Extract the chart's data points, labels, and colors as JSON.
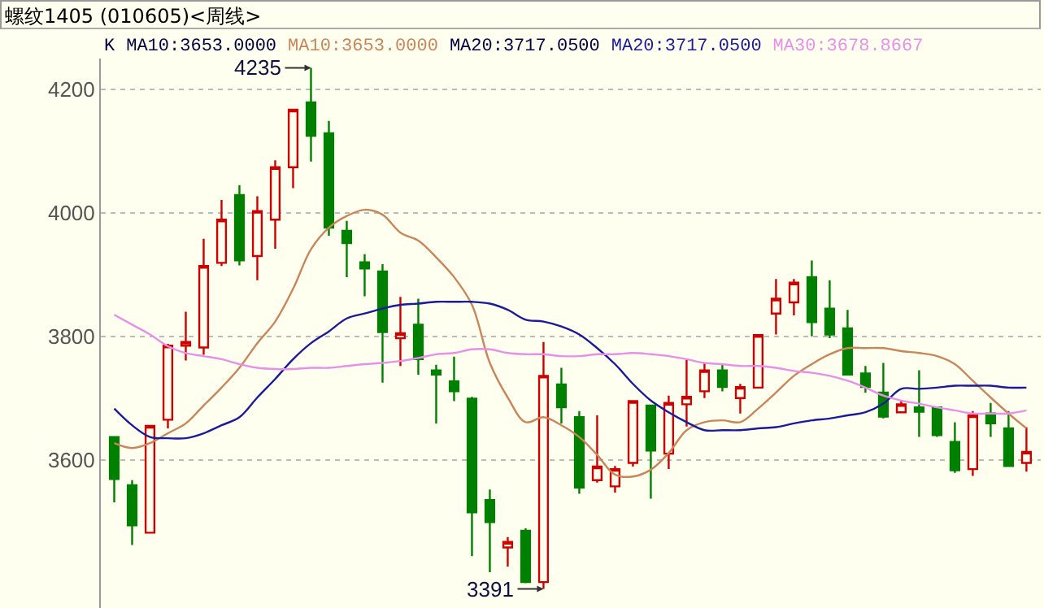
{
  "chart_data": {
    "type": "candlestick",
    "title": "螺纹1405 (010605)<周线>",
    "categories": [
      null,
      null,
      null,
      null,
      null,
      null,
      null,
      null,
      null,
      null,
      null,
      null,
      null,
      null,
      null,
      null,
      null,
      null,
      null,
      null,
      null,
      null,
      null,
      null,
      null,
      null,
      null,
      null,
      null,
      null,
      null,
      null,
      null,
      null,
      null,
      null,
      null,
      null,
      null,
      null,
      null,
      null,
      null,
      null,
      null,
      null,
      null,
      null,
      null,
      null,
      null,
      null
    ],
    "ohlc": [
      [
        3637,
        3638,
        3531,
        3569
      ],
      [
        3559,
        3567,
        3462,
        3494
      ],
      [
        3482,
        3655,
        3482,
        3655
      ],
      [
        3665,
        3788,
        3651,
        3785
      ],
      [
        3785,
        3840,
        3761,
        3791
      ],
      [
        3782,
        3958,
        3770,
        3914
      ],
      [
        3919,
        4021,
        3914,
        3989
      ],
      [
        4029,
        4045,
        3915,
        3923
      ],
      [
        3930,
        4027,
        3891,
        4003
      ],
      [
        3989,
        4085,
        3942,
        4074
      ],
      [
        4074,
        4167,
        4040,
        4167
      ],
      [
        4179,
        4235,
        4083,
        4125
      ],
      [
        4129,
        4149,
        3963,
        3976
      ],
      [
        3971,
        3987,
        3896,
        3951
      ],
      [
        3920,
        3933,
        3865,
        3910
      ],
      [
        3905,
        3917,
        3725,
        3807
      ],
      [
        3797,
        3864,
        3752,
        3805
      ],
      [
        3819,
        3861,
        3738,
        3763
      ],
      [
        3745,
        3754,
        3659,
        3738
      ],
      [
        3727,
        3767,
        3695,
        3711
      ],
      [
        3699,
        3702,
        3444,
        3515
      ],
      [
        3535,
        3552,
        3418,
        3499
      ],
      [
        3458,
        3475,
        3427,
        3467
      ],
      [
        3485,
        3489,
        3400,
        3402
      ],
      [
        3402,
        3791,
        3391,
        3736
      ],
      [
        3722,
        3749,
        3659,
        3685
      ],
      [
        3669,
        3679,
        3545,
        3555
      ],
      [
        3567,
        3672,
        3563,
        3589
      ],
      [
        3557,
        3590,
        3547,
        3585
      ],
      [
        3595,
        3695,
        3589,
        3695
      ],
      [
        3688,
        3688,
        3537,
        3615
      ],
      [
        3610,
        3704,
        3585,
        3692
      ],
      [
        3690,
        3763,
        3654,
        3702
      ],
      [
        3711,
        3757,
        3700,
        3745
      ],
      [
        3745,
        3754,
        3711,
        3718
      ],
      [
        3700,
        3723,
        3675,
        3718
      ],
      [
        3717,
        3802,
        3717,
        3802
      ],
      [
        3837,
        3893,
        3803,
        3861
      ],
      [
        3855,
        3893,
        3834,
        3887
      ],
      [
        3896,
        3923,
        3800,
        3823
      ],
      [
        3845,
        3891,
        3797,
        3803
      ],
      [
        3813,
        3843,
        3738,
        3738
      ],
      [
        3740,
        3752,
        3709,
        3718
      ],
      [
        3709,
        3757,
        3667,
        3670
      ],
      [
        3677,
        3696,
        3677,
        3690
      ],
      [
        3685,
        3745,
        3637,
        3678
      ],
      [
        3685,
        3685,
        3637,
        3640
      ],
      [
        3629,
        3661,
        3579,
        3583
      ],
      [
        3585,
        3679,
        3574,
        3672
      ],
      [
        3675,
        3692,
        3637,
        3659
      ],
      [
        3651,
        3679,
        3590,
        3590
      ],
      [
        3595,
        3653,
        3581,
        3613
      ]
    ],
    "colors": [
      "#008000",
      "#008000",
      "#d00000",
      "#d00000",
      "#d00000",
      "#d00000",
      "#d00000",
      "#008000",
      "#d00000",
      "#d00000",
      "#d00000",
      "#008000",
      "#008000",
      "#008000",
      "#008000",
      "#008000",
      "#d00000",
      "#008000",
      "#008000",
      "#008000",
      "#008000",
      "#008000",
      "#d00000",
      "#008000",
      "#d00000",
      "#008000",
      "#008000",
      "#d00000",
      "#d00000",
      "#d00000",
      "#008000",
      "#d00000",
      "#d00000",
      "#d00000",
      "#008000",
      "#d00000",
      "#d00000",
      "#d00000",
      "#d00000",
      "#008000",
      "#008000",
      "#008000",
      "#008000",
      "#008000",
      "#d00000",
      "#008000",
      "#008000",
      "#008000",
      "#d00000",
      "#008000",
      "#008000",
      "#d00000"
    ],
    "series": [
      {
        "type": "line",
        "name": "MA10:3653.0000",
        "color": "#c8865a",
        "values": [
          3627,
          3619,
          3627,
          3643,
          3659,
          3688,
          3717,
          3749,
          3789,
          3824,
          3877,
          3941,
          3976,
          3995,
          4005,
          3997,
          3968,
          3955,
          3928,
          3896,
          3851,
          3757,
          3701,
          3661,
          3669,
          3656,
          3637,
          3608,
          3576,
          3573,
          3584,
          3611,
          3648,
          3661,
          3664,
          3661,
          3683,
          3709,
          3736,
          3755,
          3771,
          3781,
          3781,
          3781,
          3776,
          3773,
          3768,
          3755,
          3728,
          3701,
          3675,
          3651
        ]
      },
      {
        "type": "line",
        "name": "MA20:3717.0500",
        "color": "#1a1a9c",
        "values": [
          3683,
          3656,
          3637,
          3635,
          3635,
          3643,
          3656,
          3669,
          3701,
          3731,
          3763,
          3789,
          3808,
          3829,
          3837,
          3845,
          3851,
          3853,
          3856,
          3856,
          3856,
          3853,
          3843,
          3827,
          3824,
          3816,
          3803,
          3781,
          3755,
          3723,
          3696,
          3677,
          3661,
          3648,
          3648,
          3648,
          3651,
          3653,
          3659,
          3664,
          3667,
          3672,
          3677,
          3691,
          3715,
          3715,
          3717,
          3720,
          3720,
          3720,
          3717,
          3717
        ]
      },
      {
        "type": "line",
        "name": "MA30:3678.8667",
        "color": "#e890e8",
        "values": [
          3835,
          3819,
          3803,
          3784,
          3773,
          3768,
          3763,
          3755,
          3749,
          3747,
          3747,
          3749,
          3749,
          3752,
          3755,
          3757,
          3760,
          3765,
          3771,
          3773,
          3779,
          3779,
          3773,
          3771,
          3771,
          3768,
          3768,
          3771,
          3771,
          3773,
          3771,
          3768,
          3763,
          3757,
          3755,
          3752,
          3752,
          3749,
          3744,
          3741,
          3736,
          3728,
          3717,
          3704,
          3696,
          3691,
          3685,
          3680,
          3675,
          3675,
          3675,
          3680
        ]
      }
    ],
    "annotations": [
      "K",
      "MA10:3653.0000",
      "MA20:3717.0500",
      "4235",
      "3391"
    ],
    "ylim": [
      3360,
      4250
    ],
    "yticks": [
      3600,
      3800,
      4000,
      4200
    ],
    "grid": "y",
    "legend": "top left",
    "tick_labels": "y"
  }
}
